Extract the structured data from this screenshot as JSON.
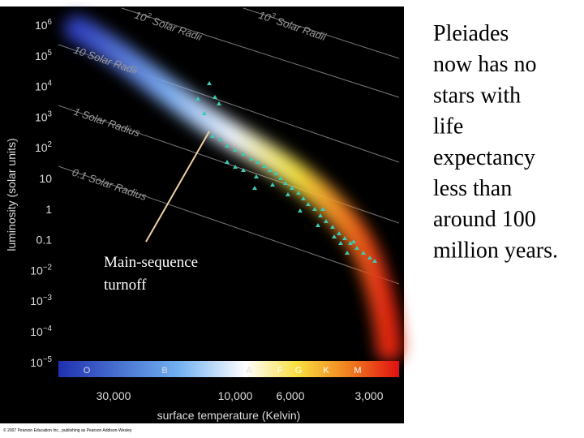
{
  "figure": {
    "y_axis_title": "luminosity (solar units)",
    "x_axis_title": "surface temperature (Kelvin)",
    "y_ticks": [
      {
        "text": "10",
        "sup": "6"
      },
      {
        "text": "10",
        "sup": "5"
      },
      {
        "text": "10",
        "sup": "4"
      },
      {
        "text": "10",
        "sup": "3"
      },
      {
        "text": "10",
        "sup": "2"
      },
      {
        "text": "10"
      },
      {
        "text": "1"
      },
      {
        "text": "0.1"
      },
      {
        "text": "10",
        "sup": "−2"
      },
      {
        "text": "10",
        "sup": "−3"
      },
      {
        "text": "10",
        "sup": "−4"
      },
      {
        "text": "10",
        "sup": "−5"
      }
    ],
    "x_ticks": [
      "30,000",
      "10,000",
      "6,000",
      "3,000"
    ],
    "spectral_classes": [
      "O",
      "B",
      "A",
      "F",
      "G",
      "K",
      "M"
    ],
    "radius_labels": [
      {
        "text": "10",
        "sup": "2",
        "rest": " Solar Radii"
      },
      {
        "text": "10",
        "sup": "3",
        "rest": " Solar Radii"
      },
      {
        "text": "10 Solar Radii"
      },
      {
        "text": "1 Solar Radius"
      },
      {
        "text": "0.1 Solar Radius"
      }
    ],
    "annotation": [
      "Main-sequence",
      "turnoff"
    ],
    "copyright": "© 2007 Pearson Education Inc., publishing as Pearson Addison-Wesley"
  },
  "caption": [
    "Pleiades",
    "now has no",
    "stars with",
    "life",
    "expectancy",
    "less than",
    "around 100",
    "million years."
  ]
}
